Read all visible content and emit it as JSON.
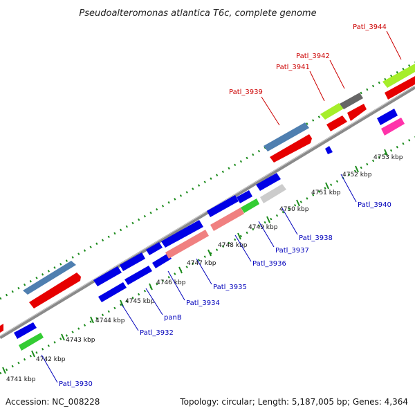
{
  "title": "Pseudoalteromonas atlantica T6c, complete genome",
  "footer": {
    "accession": "Accession: NC_008228",
    "summary": "Topology: circular; Length: 5,187,005 bp; Genes: 4,364"
  },
  "colors": {
    "background": "#ffffff",
    "backbone": "#8a8a8a",
    "tick": "#1a8a1a",
    "label_top": "#cc0000",
    "label_bottom": "#0000bb",
    "cds_blue": "#0000e6",
    "cds_red": "#e60000",
    "cds_steelblue": "#4f7fb0",
    "cds_lime": "#a6ee2a",
    "cds_grey": "#666666",
    "cds_salmon": "#f08080",
    "cds_lightgrey": "#cccccc",
    "cds_green": "#33cc33",
    "cds_magenta": "#ff33aa"
  },
  "scale_labels": [
    "4741 kbp",
    "4742 kbp",
    "4743 kbp",
    "4744 kbp",
    "4745 kbp",
    "4746 kbp",
    "4747 kbp",
    "4748 kbp",
    "4749 kbp",
    "4750 kbp",
    "4751 kbp",
    "4752 kbp",
    "4753 kbp"
  ],
  "gene_labels_top": [
    "Patl_3939",
    "Patl_3941",
    "Patl_3942",
    "Patl_3944"
  ],
  "gene_labels_bottom": [
    "Patl_3930",
    "Patl_3932",
    "panB",
    "Patl_3934",
    "Patl_3935",
    "Patl_3936",
    "Patl_3937",
    "Patl_3938",
    "Patl_3940"
  ]
}
